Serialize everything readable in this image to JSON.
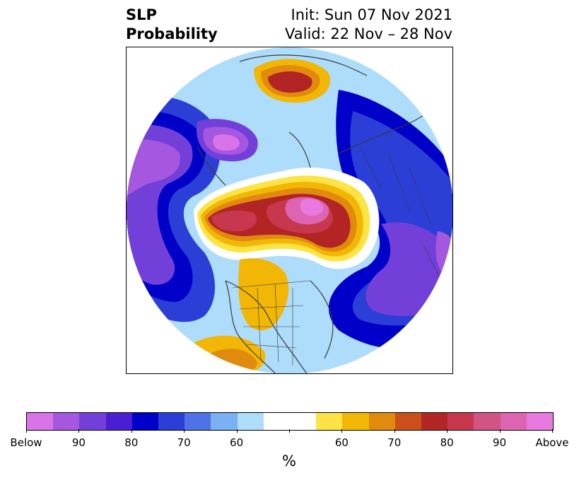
{
  "title": {
    "left_line1": "SLP",
    "left_line2": "Probability",
    "right_line1": "Init: Sun 07 Nov 2021",
    "right_line2": "Valid: 22 Nov – 28 Nov"
  },
  "colorbar": {
    "units": "%",
    "colors": [
      "#d973e8",
      "#a557e0",
      "#7240d9",
      "#4a1fd4",
      "#0000c8",
      "#2b3ed6",
      "#4f73e6",
      "#79b1f2",
      "#aedcfb",
      "#ffffff",
      "#ffffff",
      "#fde444",
      "#f2b705",
      "#e08a0e",
      "#c9501a",
      "#b32424",
      "#c7384e",
      "#d05585",
      "#dd64b0",
      "#e879df"
    ],
    "tick_labels": [
      "Below",
      "90",
      "80",
      "70",
      "60",
      "",
      "60",
      "70",
      "80",
      "90",
      "Above"
    ]
  },
  "map": {
    "projection": "north-polar-stereographic",
    "features": [
      "coastlines",
      "country-borders",
      "us-state-borders"
    ]
  }
}
